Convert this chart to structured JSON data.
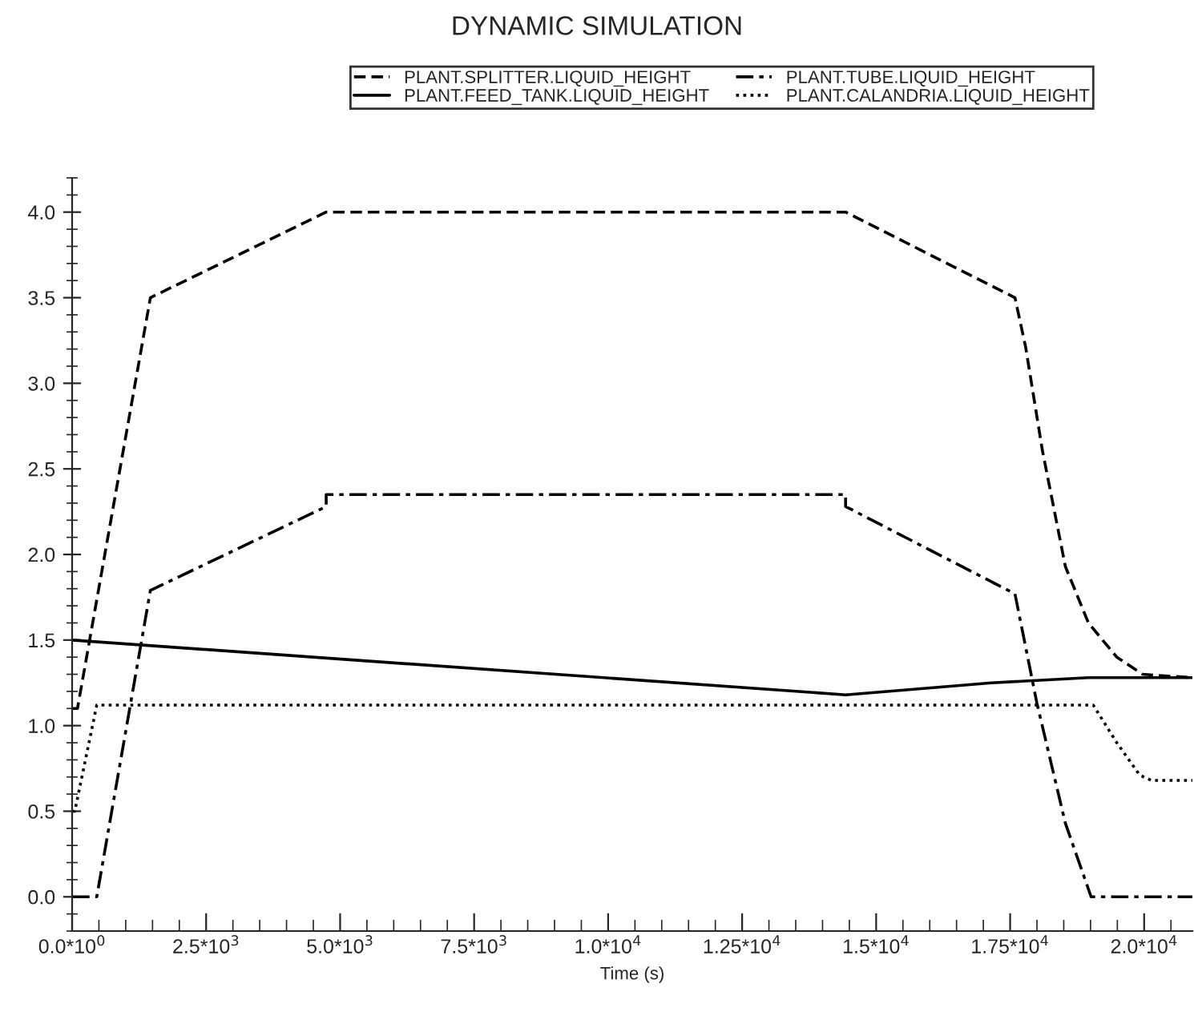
{
  "chart_data": {
    "type": "line",
    "title": "DYNAMIC SIMULATION",
    "xlabel": "Time (s)",
    "xlim": [
      0,
      20900
    ],
    "ylim": [
      -0.2,
      4.2
    ],
    "xticks": [
      {
        "value": 0,
        "label": "0.0*10$^{0}$"
      },
      {
        "value": 2500,
        "label": "2.5*10$^{3}$"
      },
      {
        "value": 5000,
        "label": "5.0*10$^{3}$"
      },
      {
        "value": 7500,
        "label": "7.5*10$^{3}$"
      },
      {
        "value": 10000,
        "label": "1.0*10$^{4}$"
      },
      {
        "value": 12500,
        "label": "1.25*10$^{4}$"
      },
      {
        "value": 15000,
        "label": "1.5*10$^{4}$"
      },
      {
        "value": 17500,
        "label": "1.75*10$^{4}$"
      },
      {
        "value": 20000,
        "label": "2.0*10$^{4}$"
      }
    ],
    "yticks": [
      {
        "value": 0,
        "label": "0.0"
      },
      {
        "value": 0.5,
        "label": "0.5"
      },
      {
        "value": 1,
        "label": "1.0"
      },
      {
        "value": 1.5,
        "label": "1.5"
      },
      {
        "value": 2,
        "label": "2.0"
      },
      {
        "value": 2.5,
        "label": "2.5"
      },
      {
        "value": 3,
        "label": "3.0"
      },
      {
        "value": 3.5,
        "label": "3.5"
      },
      {
        "value": 4,
        "label": "4.0"
      }
    ],
    "grid": false,
    "legend": "top",
    "series": [
      {
        "name": "PLANT.SPLITTER.LIQUID_HEIGHT",
        "color": "#000000",
        "line_style": "dashed",
        "x": [
          0,
          100,
          1460,
          4740,
          14430,
          17590,
          17790,
          18100,
          18530,
          18960,
          19490,
          19970,
          20900
        ],
        "values": [
          1.1,
          1.1,
          3.5,
          4.0,
          4.0,
          3.5,
          3.21,
          2.61,
          1.93,
          1.6,
          1.4,
          1.3,
          1.28
        ]
      },
      {
        "name": "PLANT.FEED_TANK.LIQUID_HEIGHT",
        "color": "#000000",
        "line_style": "solid",
        "x": [
          0,
          14430,
          17150,
          18960,
          20900
        ],
        "values": [
          1.5,
          1.18,
          1.25,
          1.28,
          1.28
        ]
      },
      {
        "name": "PLANT.TUBE.LIQUID_HEIGHT",
        "color": "#000000",
        "line_style": "dashdot",
        "x": [
          0,
          460,
          1460,
          4740,
          4740,
          14430,
          14430,
          17590,
          18000,
          18530,
          19010,
          20900
        ],
        "values": [
          0,
          0,
          1.79,
          2.28,
          2.35,
          2.35,
          2.28,
          1.77,
          1.13,
          0.43,
          0,
          0
        ]
      },
      {
        "name": "PLANT.CALANDRIA.LIQUID_HEIGHT",
        "color": "#000000",
        "line_style": "dotted",
        "x": [
          0,
          50,
          460,
          19050,
          19490,
          19920,
          20140,
          20900
        ],
        "values": [
          0.5,
          0.5,
          1.12,
          1.12,
          0.9,
          0.71,
          0.68,
          0.68
        ]
      }
    ]
  }
}
